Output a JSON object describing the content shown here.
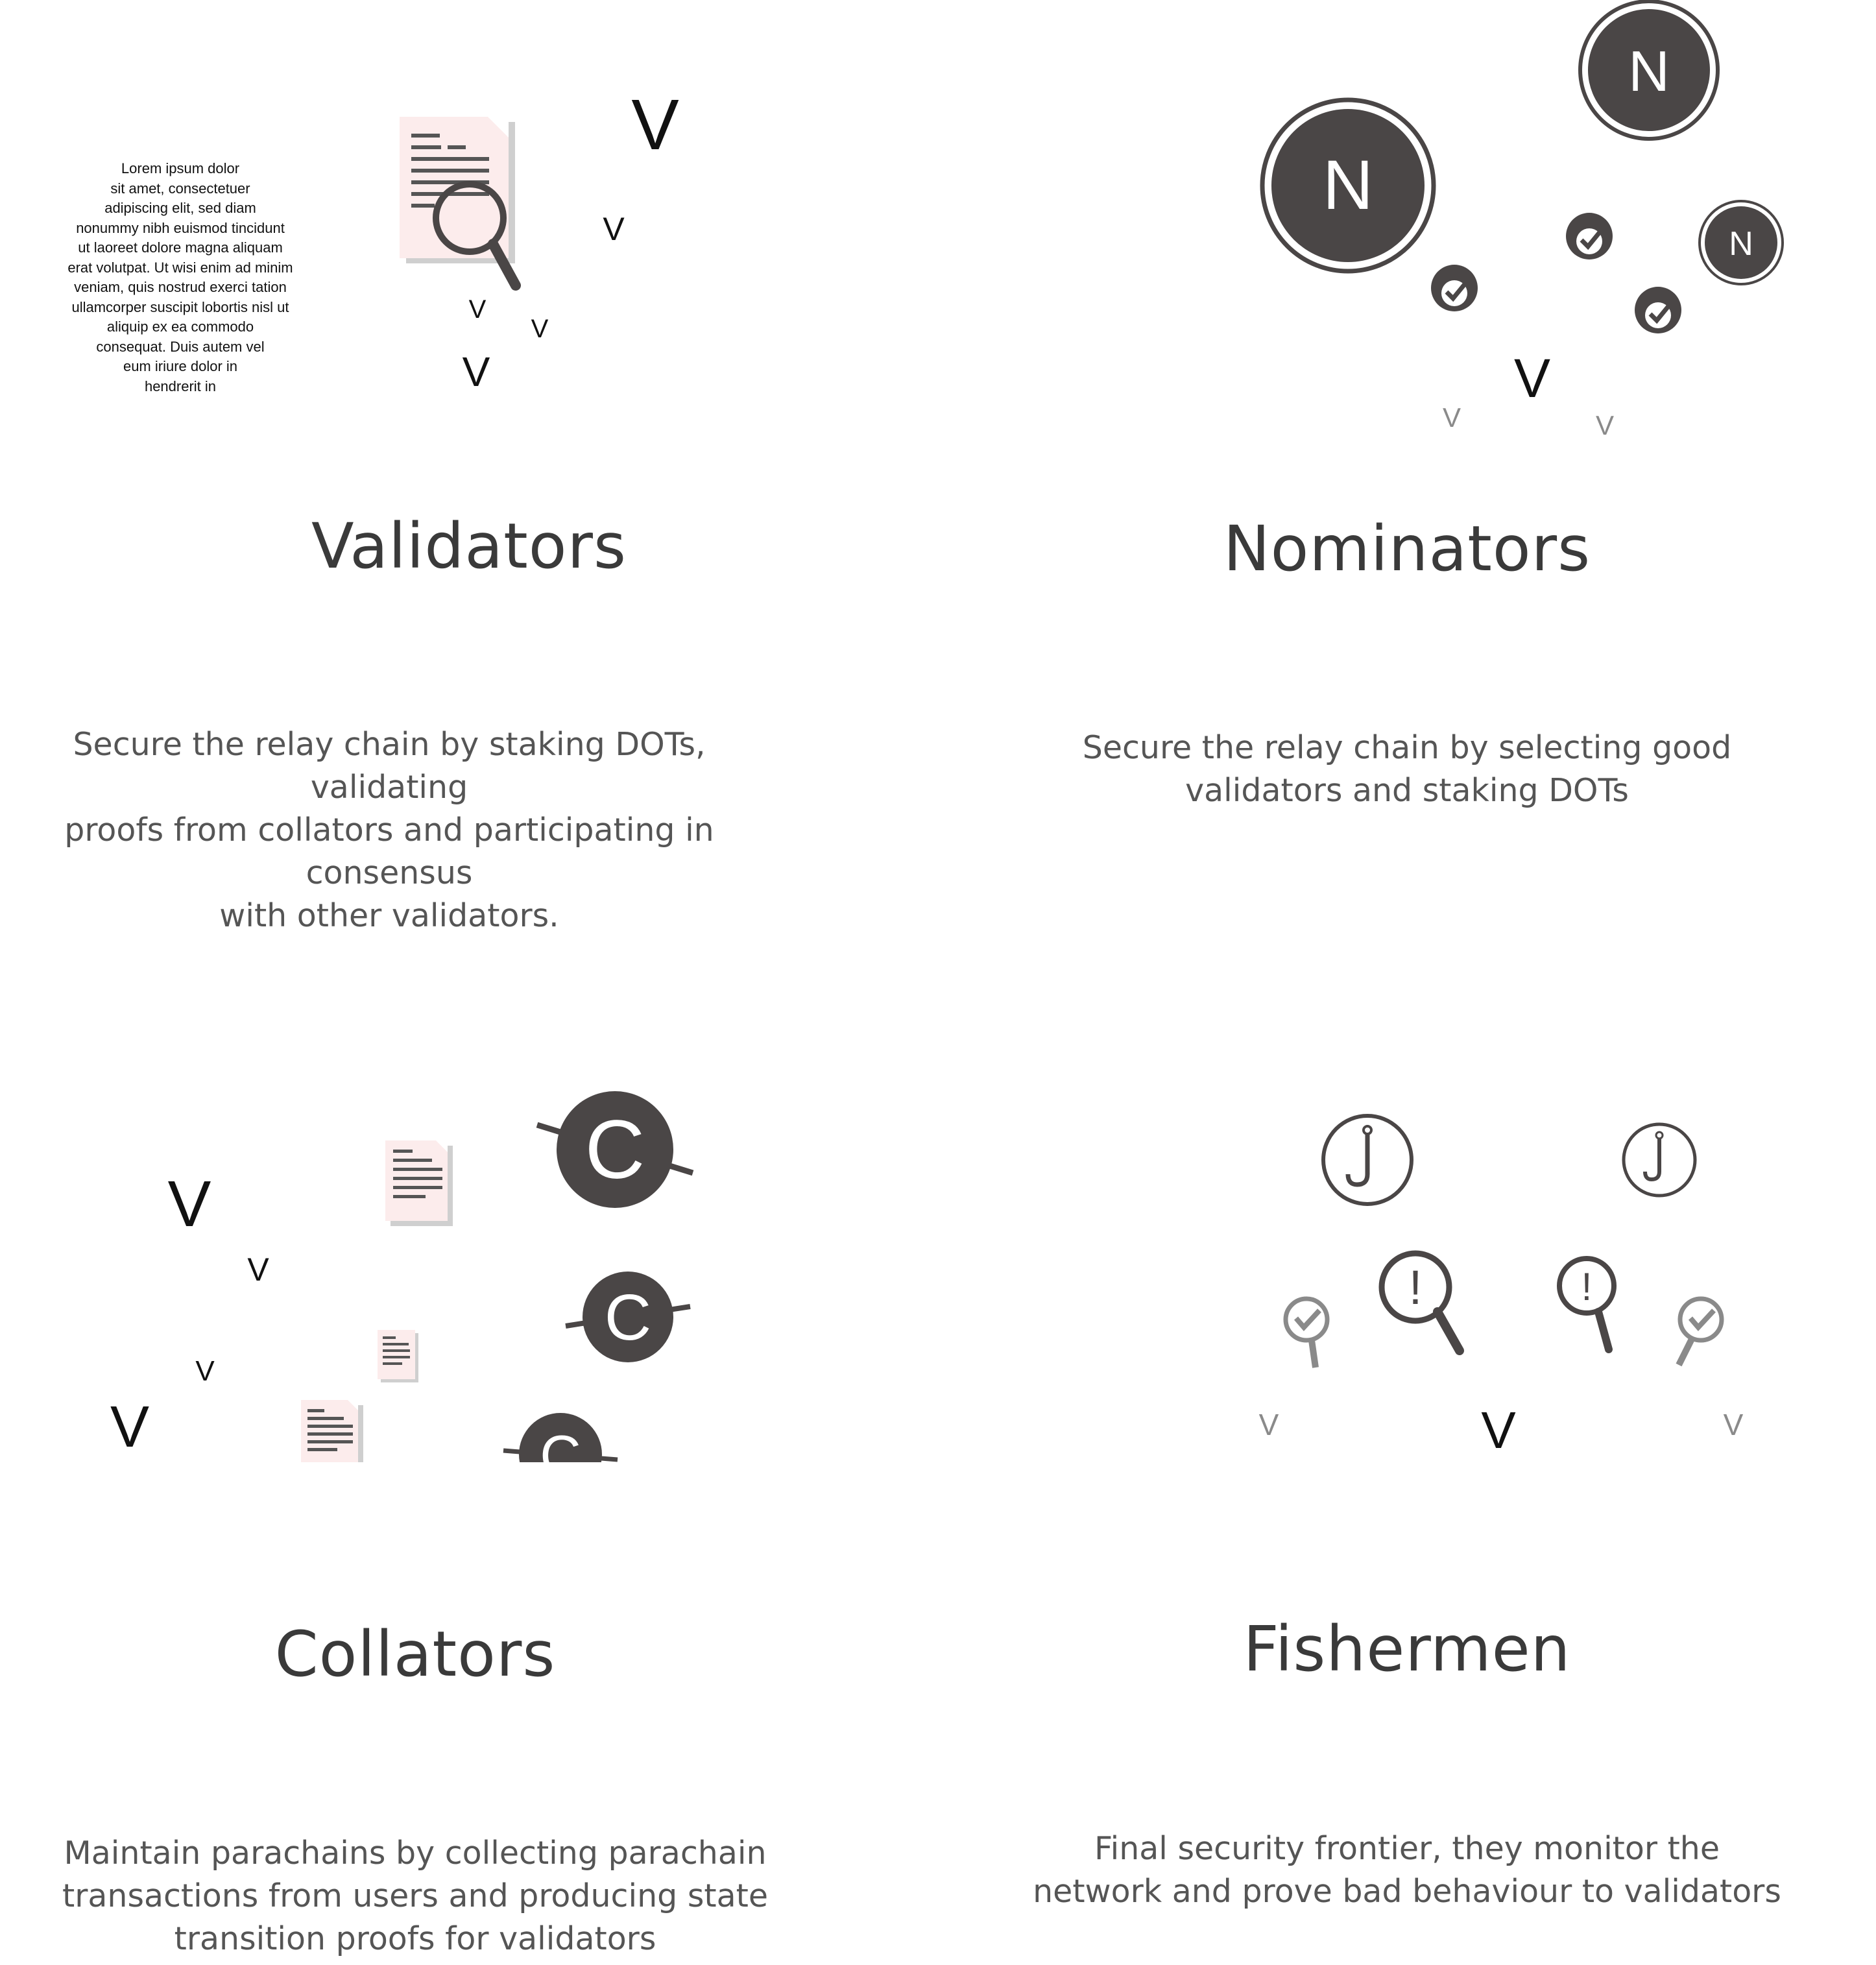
{
  "colors": {
    "dark": "#4a4646",
    "paper": "#fcecec",
    "paper_shadow": "#cfcfcf",
    "text": "#3a3a3a",
    "desc": "#555555",
    "muted": "#8a8a8a"
  },
  "validators": {
    "title": "Validators",
    "description": [
      "Secure the relay chain by staking DOTs, validating",
      "proofs from collators and participating in consensus",
      "with other validators."
    ],
    "lorem_lines": [
      "Lorem ipsum dolor",
      "sit amet, consectetuer",
      "adipiscing elit, sed diam",
      "nonummy nibh euismod tincidunt",
      "ut laoreet dolore magna aliquam",
      "erat volutpat. Ut wisi enim ad minim",
      "veniam, quis nostrud exerci tation",
      "ullamcorper suscipit lobortis nisl ut",
      "aliquip ex ea commodo",
      "consequat. Duis autem vel",
      "eum iriure dolor in",
      "hendrerit in"
    ],
    "v_labels": [
      "V",
      "V",
      "V",
      "V",
      "V"
    ]
  },
  "nominators": {
    "title": "Nominators",
    "description": [
      "Secure the relay chain by selecting good",
      "validators and staking DOTs"
    ],
    "n_labels": [
      "N",
      "N",
      "N"
    ],
    "v_labels": [
      "V",
      "V",
      "V"
    ]
  },
  "collators": {
    "title": "Collators",
    "description": [
      "Maintain parachains by collecting parachain",
      "transactions from users and producing state",
      "transition proofs for validators"
    ],
    "c_labels": [
      "C",
      "C",
      "C"
    ],
    "v_labels": [
      "V",
      "V",
      "V",
      "V"
    ]
  },
  "fishermen": {
    "title": "Fishermen",
    "description": [
      "Final security frontier, they monitor the",
      "network and prove bad behaviour to validators"
    ],
    "alert_labels": [
      "!",
      "!"
    ],
    "v_labels": [
      "V",
      "V",
      "V"
    ]
  }
}
